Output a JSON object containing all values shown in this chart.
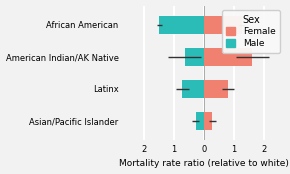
{
  "categories": [
    "African American",
    "American Indian/AK Native",
    "Latinx",
    "Asian/Pacific Islander"
  ],
  "male_values": [
    -1.5,
    -0.65,
    -0.72,
    -0.28
  ],
  "female_values": [
    1.28,
    1.62,
    0.82,
    0.28
  ],
  "male_err": [
    0.08,
    0.55,
    0.22,
    0.12
  ],
  "female_err": [
    0.1,
    0.55,
    0.2,
    0.12
  ],
  "male_color": "#2bbcb8",
  "female_color": "#f08070",
  "background_color": "#f2f2f2",
  "grid_color": "#ffffff",
  "xlim": [
    -2.7,
    2.7
  ],
  "xticks": [
    -2,
    -1,
    0,
    1,
    2
  ],
  "xtick_labels": [
    "2",
    "1",
    "0",
    "1",
    "2"
  ],
  "xlabel": "Mortality rate ratio (relative to white)",
  "legend_title": "Sex",
  "legend_female": "Female",
  "legend_male": "Male",
  "bar_height": 0.55,
  "axis_fontsize": 6.5,
  "tick_fontsize": 6.0,
  "legend_fontsize": 6.5
}
